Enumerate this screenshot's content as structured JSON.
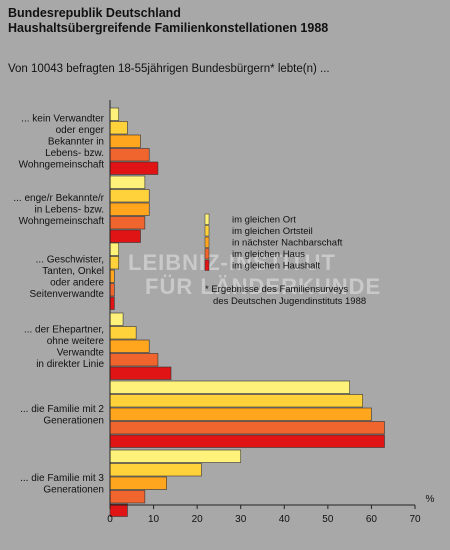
{
  "header": {
    "title_line1": "Bundesrepublik Deutschland",
    "title_line2": "Haushaltsübergreifende Familienkonstellationen 1988",
    "subtitle": "Von 10043 befragten 18-55jährigen Bundesbürgern* lebte(n) ..."
  },
  "watermark": {
    "line1": "LEIBNIZ-INSTITUT",
    "line2": "FÜR LÄNDERKUNDE"
  },
  "footnote": {
    "line1": "* Ergebnisse des Familiensurveys",
    "line2": "des Deutschen Jugendinstituts 1988"
  },
  "colors": {
    "background": "#a8a8a8",
    "series": [
      "#fff27a",
      "#ffd23c",
      "#ffa51e",
      "#f0642d",
      "#e01414"
    ]
  },
  "chart_data": {
    "type": "bar",
    "orientation": "horizontal",
    "unit": "%",
    "xlim": [
      0,
      70
    ],
    "xticks": [
      0,
      10,
      20,
      30,
      40,
      50,
      60,
      70
    ],
    "grid": false,
    "legend_position": "right-middle",
    "categories": [
      [
        "... kein Verwandter",
        "oder enger",
        "Bekannter in",
        "Lebens- bzw.",
        "Wohngemeinschaft"
      ],
      [
        "... enge/r Bekannte/r",
        "in Lebens- bzw.",
        "Wohngemeinschaft"
      ],
      [
        "... Geschwister,",
        "Tanten, Onkel",
        "oder andere",
        "Seitenverwandte"
      ],
      [
        "... der Ehepartner,",
        "ohne weitere",
        "Verwandte",
        "in direkter Linie"
      ],
      [
        "... die Familie mit 2",
        "Generationen"
      ],
      [
        "... die Familie mit 3",
        "Generationen"
      ]
    ],
    "series": [
      {
        "name": "im gleichen Ort",
        "values": [
          2,
          8,
          2,
          3,
          55,
          30
        ]
      },
      {
        "name": "im gleichen Ortsteil",
        "values": [
          4,
          9,
          2,
          6,
          58,
          21
        ]
      },
      {
        "name": "in nächster Nachbarschaft",
        "values": [
          7,
          9,
          1,
          9,
          60,
          13
        ]
      },
      {
        "name": "im gleichen Haus",
        "values": [
          9,
          8,
          1,
          11,
          63,
          8
        ]
      },
      {
        "name": "im gleichen Haushalt",
        "values": [
          11,
          7,
          1,
          14,
          63,
          4
        ]
      }
    ]
  }
}
